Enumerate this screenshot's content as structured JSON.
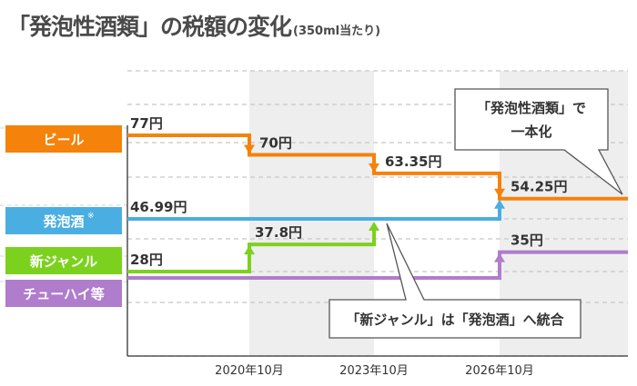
{
  "title": {
    "main": "「発泡性酒類」の税額の変化",
    "sub": "(350ml当たり)"
  },
  "chart_data": {
    "type": "line",
    "title": "「発泡性酒類」の税額の変化",
    "subtitle": "(350ml当たり)",
    "x_ticks": [
      "2020年10月",
      "2023年10月",
      "2026年10月"
    ],
    "grid": "dashed-horizontal",
    "series": [
      {
        "name": "ビール",
        "color": "#f5820a",
        "steps": [
          77,
          70,
          63.35,
          54.25
        ],
        "labels": [
          "77円",
          "70円",
          "63.35円",
          "54.25円"
        ]
      },
      {
        "name": "発泡酒",
        "note": "※",
        "color": "#4aaee2",
        "steps": [
          46.99,
          46.99,
          46.99,
          54.25
        ],
        "labels": [
          "46.99円"
        ]
      },
      {
        "name": "新ジャンル",
        "color": "#7cd11e",
        "steps": [
          28,
          37.8,
          46.99
        ],
        "labels": [
          "28円",
          "37.8円"
        ]
      },
      {
        "name": "チューハイ等",
        "color": "#b07ccc",
        "steps": [
          28,
          28,
          28,
          35
        ],
        "labels": [
          "35円"
        ]
      }
    ],
    "annotations": [
      "「発泡性酒類」で一本化",
      "「新ジャンル」は「発泡酒」へ統合"
    ]
  },
  "callouts": {
    "unify": [
      "「発泡性酒類」で",
      "一本化"
    ],
    "merge": "「新ジャンル」は「発泡酒」へ統合"
  }
}
